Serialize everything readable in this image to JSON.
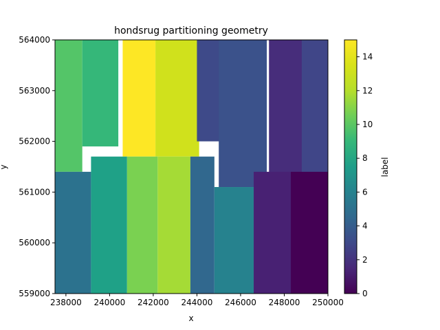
{
  "chart_data": {
    "type": "heatmap",
    "title": "hondsrug partitioning geometry",
    "xlabel": "x",
    "ylabel": "y",
    "xlim": [
      237500,
      250000
    ],
    "ylim": [
      559000,
      564000
    ],
    "xticks": [
      "238000",
      "240000",
      "242000",
      "244000",
      "246000",
      "248000",
      "250000"
    ],
    "xtick_values": [
      238000,
      240000,
      242000,
      244000,
      246000,
      248000,
      250000
    ],
    "yticks": [
      "559000",
      "560000",
      "561000",
      "562000",
      "563000",
      "564000"
    ],
    "ytick_values": [
      559000,
      560000,
      561000,
      562000,
      563000,
      564000
    ],
    "colorbar": {
      "label": "label",
      "range": [
        0,
        15
      ],
      "ticks": [
        "0",
        "2",
        "4",
        "6",
        "8",
        "10",
        "12",
        "14"
      ],
      "tick_values": [
        0,
        2,
        4,
        6,
        8,
        10,
        12,
        14
      ],
      "colormap": "viridis"
    },
    "grid": false,
    "regions": [
      {
        "label": 11,
        "color": "#54c568",
        "bounds": [
          [
            237500,
            561400
          ],
          [
            238750,
            564000
          ]
        ]
      },
      {
        "label": 10,
        "color": "#35b779",
        "bounds": [
          [
            238750,
            561900
          ],
          [
            240400,
            564000
          ]
        ]
      },
      {
        "label": 15,
        "color": "#fde725",
        "bounds": [
          [
            240600,
            561700
          ],
          [
            242100,
            564000
          ]
        ]
      },
      {
        "label": 14,
        "color": "#d0e11c",
        "bounds": [
          [
            242100,
            561700
          ],
          [
            244100,
            564000
          ]
        ]
      },
      {
        "label": 5,
        "color": "#3e4a89",
        "bounds": [
          [
            244000,
            562000
          ],
          [
            246700,
            564000
          ]
        ]
      },
      {
        "label": 4,
        "color": "#3b528b",
        "bounds": [
          [
            245000,
            561100
          ],
          [
            247200,
            564000
          ]
        ]
      },
      {
        "label": 2,
        "color": "#472d7b",
        "bounds": [
          [
            247300,
            561300
          ],
          [
            249200,
            564000
          ]
        ]
      },
      {
        "label": 3,
        "color": "#404688",
        "bounds": [
          [
            248800,
            561300
          ],
          [
            250000,
            564000
          ]
        ]
      },
      {
        "label": 7,
        "color": "#2c728e",
        "bounds": [
          [
            237500,
            559000
          ],
          [
            239150,
            561400
          ]
        ]
      },
      {
        "label": 9,
        "color": "#1fa187",
        "bounds": [
          [
            239150,
            559000
          ],
          [
            240800,
            561700
          ]
        ]
      },
      {
        "label": 12,
        "color": "#7ad151",
        "bounds": [
          [
            240800,
            559000
          ],
          [
            242200,
            561700
          ]
        ]
      },
      {
        "label": 13,
        "color": "#a5db36",
        "bounds": [
          [
            242200,
            559000
          ],
          [
            243700,
            561700
          ]
        ]
      },
      {
        "label": 6,
        "color": "#31688e",
        "bounds": [
          [
            243700,
            559000
          ],
          [
            244800,
            561700
          ]
        ]
      },
      {
        "label": 8,
        "color": "#26828e",
        "bounds": [
          [
            244800,
            559000
          ],
          [
            246600,
            561100
          ]
        ]
      },
      {
        "label": 1,
        "color": "#482173",
        "bounds": [
          [
            246600,
            559000
          ],
          [
            248300,
            561400
          ]
        ]
      },
      {
        "label": 0,
        "color": "#440154",
        "bounds": [
          [
            248300,
            559000
          ],
          [
            250000,
            561400
          ]
        ]
      }
    ]
  }
}
